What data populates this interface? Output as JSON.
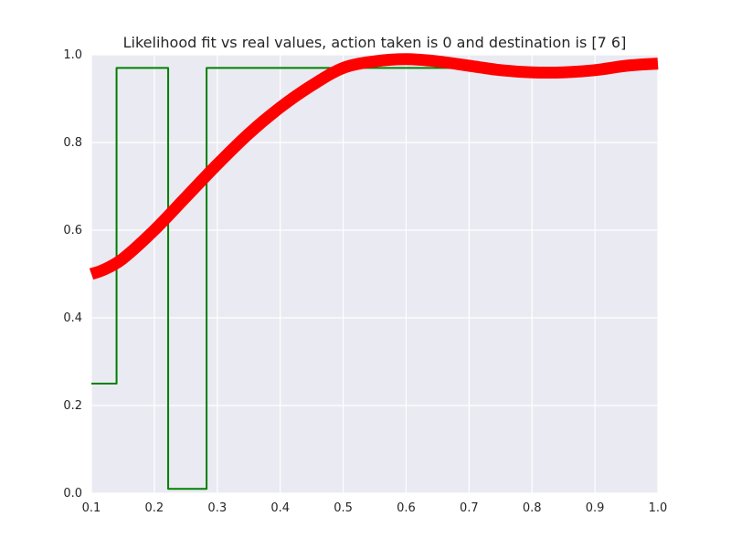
{
  "chart_data": {
    "type": "line",
    "title": "Likelihood fit vs real values, action taken is 0 and destination is [7 6]",
    "xlabel": "",
    "ylabel": "",
    "xlim": [
      0.1,
      1.0
    ],
    "ylim": [
      0.0,
      1.0
    ],
    "xticks": [
      "0.1",
      "0.2",
      "0.3",
      "0.4",
      "0.5",
      "0.6",
      "0.7",
      "0.8",
      "0.9",
      "1.0"
    ],
    "yticks": [
      "0.0",
      "0.2",
      "0.4",
      "0.6",
      "0.8",
      "1.0"
    ],
    "grid": true,
    "background": "#EAEAF2",
    "series": [
      {
        "style": "step",
        "color": "#008000",
        "x": [
          0.1,
          0.14,
          0.14,
          0.222,
          0.222,
          0.283,
          0.283,
          1.0
        ],
        "y": [
          0.25,
          0.25,
          0.97,
          0.97,
          0.01,
          0.01,
          0.97,
          0.97
        ]
      },
      {
        "style": "thick-curve",
        "color": "#FF0000",
        "x": [
          0.1,
          0.12,
          0.15,
          0.2,
          0.25,
          0.3,
          0.35,
          0.4,
          0.45,
          0.5,
          0.55,
          0.6,
          0.65,
          0.7,
          0.75,
          0.8,
          0.85,
          0.9,
          0.95,
          1.0
        ],
        "y": [
          0.5,
          0.51,
          0.535,
          0.6,
          0.675,
          0.75,
          0.82,
          0.88,
          0.93,
          0.97,
          0.985,
          0.99,
          0.985,
          0.975,
          0.965,
          0.96,
          0.96,
          0.965,
          0.975,
          0.98
        ]
      }
    ]
  }
}
